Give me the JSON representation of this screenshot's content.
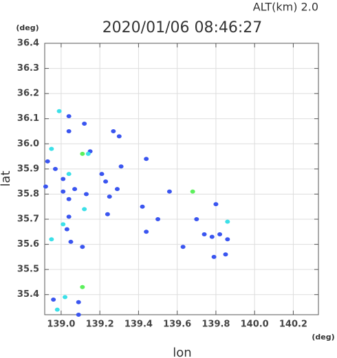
{
  "chart_data": {
    "type": "scatter",
    "title": "2020/01/06 08:46:27",
    "subtitle": "ALT(km)  2.0",
    "y_unit": "(deg)",
    "x_unit": "(deg)",
    "xlabel": "lon",
    "ylabel": "lat",
    "xlim": [
      138.915,
      140.33
    ],
    "ylim": [
      35.32,
      36.4
    ],
    "xticks": [
      {
        "value": 139,
        "label": "139.0"
      },
      139.2,
      139.4,
      139.6,
      139.8,
      {
        "value": 140,
        "label": "140.0"
      },
      140.2
    ],
    "yticks": [
      35.4,
      35.5,
      35.6,
      35.7,
      35.8,
      35.9,
      {
        "value": 36,
        "label": "36.0"
      },
      36.1,
      36.2,
      36.3,
      36.4
    ],
    "grid": true,
    "series": [
      {
        "color": "#3a55f0",
        "x": [
          139.04,
          139.12,
          139.04,
          139.27,
          139.3,
          139.15,
          138.93,
          138.97,
          139.01,
          139.21,
          139.31,
          139.44,
          139.23,
          139.29,
          138.92,
          139.01,
          139.07,
          139.25,
          139.56,
          139.04,
          139.13,
          139.42,
          139.8,
          139.04,
          139.03,
          139.24,
          139.5,
          139.44,
          139.7,
          139.74,
          139.78,
          139.82,
          139.05,
          139.11,
          139.63,
          139.86,
          139.79,
          139.85,
          138.96,
          139.09,
          139.09
        ],
        "values": [
          36.11,
          36.08,
          36.05,
          36.05,
          36.03,
          35.97,
          35.93,
          35.9,
          35.86,
          35.88,
          35.91,
          35.94,
          35.85,
          35.82,
          35.83,
          35.81,
          35.82,
          35.79,
          35.81,
          35.78,
          35.8,
          35.75,
          35.76,
          35.71,
          35.66,
          35.72,
          35.7,
          35.65,
          35.7,
          35.64,
          35.63,
          35.64,
          35.61,
          35.59,
          35.59,
          35.62,
          35.55,
          35.56,
          35.38,
          35.37,
          35.32
        ]
      },
      {
        "color": "#3ce0e8",
        "x": [
          138.99,
          138.95,
          139.14,
          139.04,
          139.12,
          139.01,
          139.86,
          138.95,
          139.02,
          138.98
        ],
        "values": [
          36.13,
          35.98,
          35.96,
          35.88,
          35.74,
          35.68,
          35.69,
          35.62,
          35.39,
          35.34
        ]
      },
      {
        "color": "#5cf05c",
        "x": [
          139.11,
          139.68,
          139.11
        ],
        "values": [
          35.96,
          35.81,
          35.43
        ]
      }
    ]
  }
}
